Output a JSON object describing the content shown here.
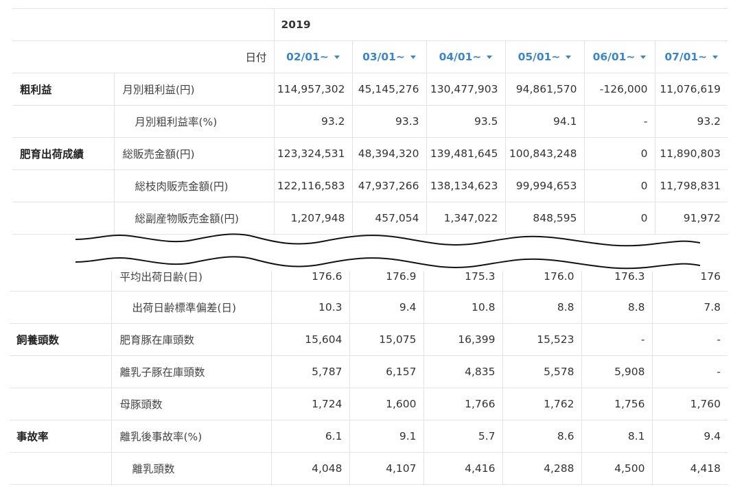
{
  "header": {
    "year": "2019",
    "date_label": "日付",
    "dates": [
      "02/01~",
      "03/01~",
      "04/01~",
      "05/01~",
      "06/01~",
      "07/01~"
    ]
  },
  "top_rows": [
    {
      "category": "粗利益",
      "label": "月別粗利益(円)",
      "indent": false,
      "values": [
        "114,957,302",
        "45,145,276",
        "130,477,903",
        "94,861,570",
        "-126,000",
        "11,076,619"
      ]
    },
    {
      "category": "",
      "label": "月別粗利益率(%)",
      "indent": true,
      "values": [
        "93.2",
        "93.3",
        "93.5",
        "94.1",
        "-",
        "93.2"
      ]
    },
    {
      "category": "肥育出荷成績",
      "label": "総販売金額(円)",
      "indent": false,
      "values": [
        "123,324,531",
        "48,394,320",
        "139,481,645",
        "100,843,248",
        "0",
        "11,890,803"
      ]
    },
    {
      "category": "",
      "label": "総枝肉販売金額(円)",
      "indent": true,
      "values": [
        "122,116,583",
        "47,937,266",
        "138,134,623",
        "99,994,653",
        "0",
        "11,798,831"
      ]
    },
    {
      "category": "",
      "label": "総副産物販売金額(円)",
      "indent": true,
      "values": [
        "1,207,948",
        "457,054",
        "1,347,022",
        "848,595",
        "0",
        "91,972"
      ]
    }
  ],
  "bottom_rows": [
    {
      "category": "",
      "label": "平均出荷日齢(日)",
      "indent": false,
      "values": [
        "176.6",
        "176.9",
        "175.3",
        "176.0",
        "176.3",
        "176"
      ]
    },
    {
      "category": "",
      "label": "出荷日齢標準偏差(日)",
      "indent": true,
      "values": [
        "10.3",
        "9.4",
        "10.8",
        "8.8",
        "8.8",
        "7.8"
      ]
    },
    {
      "category": "飼養頭数",
      "label": "肥育豚在庫頭数",
      "indent": false,
      "values": [
        "15,604",
        "15,075",
        "16,399",
        "15,523",
        "-",
        "-"
      ]
    },
    {
      "category": "",
      "label": "離乳子豚在庫頭数",
      "indent": false,
      "values": [
        "5,787",
        "6,157",
        "4,835",
        "5,578",
        "5,908",
        "-"
      ]
    },
    {
      "category": "",
      "label": "母豚頭数",
      "indent": false,
      "values": [
        "1,724",
        "1,600",
        "1,766",
        "1,762",
        "1,756",
        "1,760"
      ]
    },
    {
      "category": "事故率",
      "label": "離乳後事故率(%)",
      "indent": false,
      "values": [
        "6.1",
        "9.1",
        "5.7",
        "8.6",
        "8.1",
        "9.4"
      ]
    },
    {
      "category": "",
      "label": "離乳頭数",
      "indent": true,
      "values": [
        "4,048",
        "4,107",
        "4,416",
        "4,288",
        "4,500",
        "4,418"
      ]
    }
  ]
}
